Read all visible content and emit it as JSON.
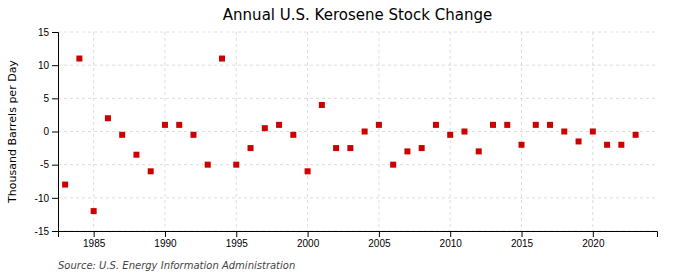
{
  "chart_data": {
    "type": "scatter",
    "title": "Annual U.S. Kerosene Stock Change",
    "y_label": "Thousand Barrels per Day",
    "annotations": [
      "Source: U.S. Energy Information Administration"
    ],
    "x": [
      1983,
      1984,
      1985,
      1986,
      1987,
      1988,
      1989,
      1990,
      1991,
      1992,
      1993,
      1994,
      1995,
      1996,
      1997,
      1998,
      1999,
      2000,
      2001,
      2002,
      2003,
      2004,
      2005,
      2006,
      2007,
      2008,
      2009,
      2010,
      2011,
      2012,
      2013,
      2014,
      2015,
      2016,
      2017,
      2018,
      2019,
      2020,
      2021,
      2022,
      2023
    ],
    "values": [
      -8.0,
      11.0,
      -12.0,
      2.0,
      -0.5,
      -3.5,
      -6.0,
      1.0,
      1.0,
      -0.5,
      -5.0,
      11.0,
      -5.0,
      -2.5,
      0.5,
      1.0,
      -0.5,
      -6.0,
      4.0,
      -2.5,
      -2.5,
      0.0,
      1.0,
      -5.0,
      -3.0,
      -2.5,
      1.0,
      -0.5,
      0.0,
      -3.0,
      1.0,
      1.0,
      -2.0,
      1.0,
      1.0,
      0.0,
      -1.5,
      0.0,
      -2.0,
      -2.0,
      -0.5
    ],
    "color": "#cc0000",
    "marker": "square",
    "xlim": [
      1982.5,
      2024.5
    ],
    "xticks": [
      1985,
      1990,
      1995,
      2000,
      2005,
      2010,
      2015,
      2020
    ],
    "ylim": [
      -15,
      15
    ],
    "yticks": [
      -15,
      -10,
      -5,
      0,
      5,
      10,
      15
    ],
    "grid": true
  }
}
